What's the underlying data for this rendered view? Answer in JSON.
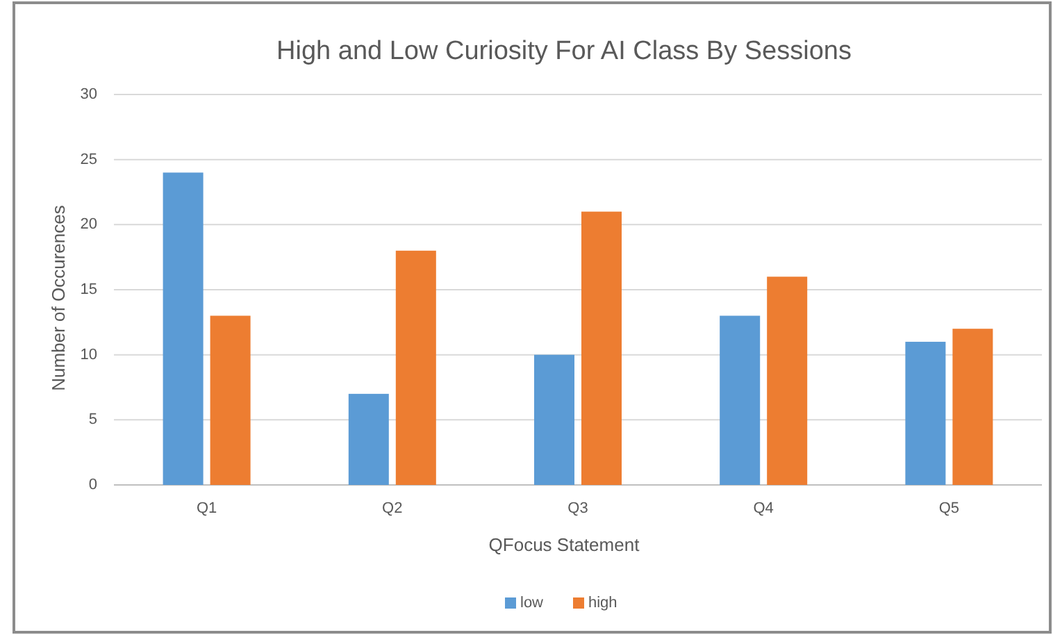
{
  "chart_data": {
    "type": "bar",
    "title": "High and Low Curiosity For AI Class By Sessions",
    "xlabel": "QFocus Statement",
    "ylabel": "Number of Occurences",
    "categories": [
      "Q1",
      "Q2",
      "Q3",
      "Q4",
      "Q5"
    ],
    "series": [
      {
        "name": "low",
        "color": "#5b9bd5",
        "values": [
          24,
          7,
          10,
          13,
          11
        ]
      },
      {
        "name": "high",
        "color": "#ed7d31",
        "values": [
          13,
          18,
          21,
          16,
          12
        ]
      }
    ],
    "ylim": [
      0,
      30
    ],
    "yticks": [
      0,
      5,
      10,
      15,
      20,
      25,
      30
    ],
    "grid": "y",
    "legend": "bottom"
  }
}
